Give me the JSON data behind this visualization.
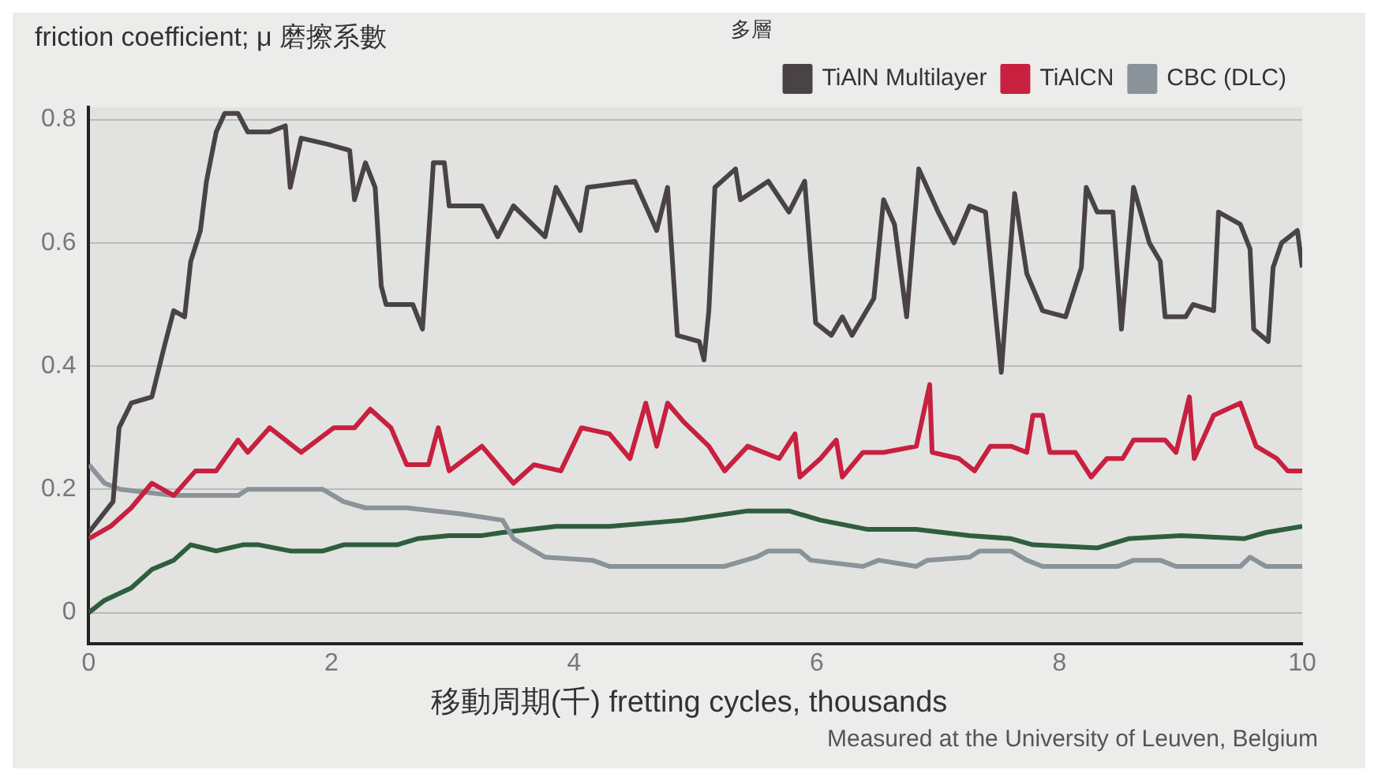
{
  "chart_data": {
    "type": "line",
    "ylabel": "friction coefficient; μ 磨擦系數",
    "xlabel": "移動周期(千) fretting cycles, thousands",
    "annotations": [
      "多層",
      "Measured at the University of Leuven, Belgium"
    ],
    "xlim": [
      0,
      10
    ],
    "xticks": [
      0,
      2,
      4,
      6,
      8,
      10
    ],
    "ylim": [
      -0.05,
      0.82
    ],
    "yticks": [
      0,
      0.2,
      0.4,
      0.6,
      0.8
    ],
    "grid": "y",
    "legend": "top right",
    "marker": "none",
    "line_style": "solid",
    "series": [
      {
        "name": "TiAlN Multilayer",
        "color": "#4a4346",
        "x": [
          0,
          0.2,
          0.25,
          0.35,
          0.52,
          0.62,
          0.7,
          0.79,
          0.84,
          0.92,
          0.97,
          1.05,
          1.12,
          1.23,
          1.31,
          1.49,
          1.62,
          1.66,
          1.75,
          1.97,
          2.15,
          2.19,
          2.28,
          2.36,
          2.41,
          2.45,
          2.67,
          2.75,
          2.84,
          2.93,
          2.97,
          3.24,
          3.37,
          3.5,
          3.76,
          3.85,
          4.05,
          4.11,
          4.5,
          4.68,
          4.77,
          4.85,
          5.03,
          5.07,
          5.11,
          5.16,
          5.33,
          5.37,
          5.6,
          5.77,
          5.9,
          5.99,
          6.12,
          6.21,
          6.29,
          6.47,
          6.55,
          6.64,
          6.74,
          6.84,
          7.0,
          7.13,
          7.26,
          7.39,
          7.52,
          7.63,
          7.73,
          7.86,
          8.05,
          8.18,
          8.22,
          8.31,
          8.44,
          8.51,
          8.61,
          8.74,
          8.83,
          8.87,
          9.04,
          9.1,
          9.27,
          9.31,
          9.49,
          9.57,
          9.6,
          9.72,
          9.76,
          9.83,
          9.96,
          10
        ],
        "values": [
          0.13,
          0.18,
          0.3,
          0.34,
          0.35,
          0.43,
          0.49,
          0.48,
          0.57,
          0.62,
          0.7,
          0.78,
          0.81,
          0.81,
          0.78,
          0.78,
          0.79,
          0.69,
          0.77,
          0.76,
          0.75,
          0.67,
          0.73,
          0.69,
          0.53,
          0.5,
          0.5,
          0.46,
          0.73,
          0.73,
          0.66,
          0.66,
          0.61,
          0.66,
          0.61,
          0.69,
          0.62,
          0.69,
          0.7,
          0.62,
          0.69,
          0.45,
          0.44,
          0.41,
          0.49,
          0.69,
          0.72,
          0.67,
          0.7,
          0.65,
          0.7,
          0.47,
          0.45,
          0.48,
          0.45,
          0.51,
          0.67,
          0.63,
          0.48,
          0.72,
          0.65,
          0.6,
          0.66,
          0.65,
          0.39,
          0.68,
          0.55,
          0.49,
          0.48,
          0.56,
          0.69,
          0.65,
          0.65,
          0.46,
          0.69,
          0.6,
          0.57,
          0.48,
          0.48,
          0.5,
          0.49,
          0.65,
          0.63,
          0.59,
          0.46,
          0.44,
          0.56,
          0.6,
          0.62,
          0.56
        ]
      },
      {
        "name": "TiAlCN",
        "color": "#c8203f",
        "x": [
          0,
          0.18,
          0.35,
          0.52,
          0.7,
          0.88,
          1.05,
          1.23,
          1.31,
          1.49,
          1.75,
          2.02,
          2.19,
          2.32,
          2.49,
          2.62,
          2.8,
          2.88,
          2.97,
          3.24,
          3.5,
          3.67,
          3.89,
          4.06,
          4.29,
          4.46,
          4.59,
          4.68,
          4.77,
          4.9,
          5.11,
          5.24,
          5.43,
          5.69,
          5.82,
          5.86,
          6.03,
          6.16,
          6.21,
          6.38,
          6.55,
          6.82,
          6.93,
          6.95,
          7.17,
          7.3,
          7.43,
          7.6,
          7.73,
          7.78,
          7.86,
          7.92,
          8.13,
          8.26,
          8.39,
          8.52,
          8.61,
          8.87,
          8.96,
          9.07,
          9.11,
          9.27,
          9.49,
          9.62,
          9.79,
          9.88,
          10
        ],
        "values": [
          0.12,
          0.14,
          0.17,
          0.21,
          0.19,
          0.23,
          0.23,
          0.28,
          0.26,
          0.3,
          0.26,
          0.3,
          0.3,
          0.33,
          0.3,
          0.24,
          0.24,
          0.3,
          0.23,
          0.27,
          0.21,
          0.24,
          0.23,
          0.3,
          0.29,
          0.25,
          0.34,
          0.27,
          0.34,
          0.31,
          0.27,
          0.23,
          0.27,
          0.25,
          0.29,
          0.22,
          0.25,
          0.28,
          0.22,
          0.26,
          0.26,
          0.27,
          0.37,
          0.26,
          0.25,
          0.23,
          0.27,
          0.27,
          0.26,
          0.32,
          0.32,
          0.26,
          0.26,
          0.22,
          0.25,
          0.25,
          0.28,
          0.28,
          0.26,
          0.35,
          0.25,
          0.32,
          0.34,
          0.27,
          0.25,
          0.23,
          0.23
        ]
      },
      {
        "name": "CBC (DLC)",
        "color": "#8a9399",
        "x": [
          0,
          0.13,
          0.26,
          0.7,
          1.23,
          1.31,
          1.57,
          1.93,
          2.1,
          2.28,
          2.54,
          2.62,
          3.07,
          3.41,
          3.5,
          3.76,
          4.15,
          4.29,
          4.9,
          5.24,
          5.5,
          5.6,
          5.86,
          5.95,
          6.38,
          6.51,
          6.82,
          6.91,
          7.26,
          7.34,
          7.6,
          7.73,
          7.86,
          8.48,
          8.61,
          8.83,
          8.96,
          9.49,
          9.57,
          9.7,
          10
        ],
        "values": [
          0.24,
          0.21,
          0.2,
          0.19,
          0.19,
          0.2,
          0.2,
          0.2,
          0.18,
          0.17,
          0.17,
          0.17,
          0.16,
          0.15,
          0.12,
          0.09,
          0.085,
          0.075,
          0.075,
          0.075,
          0.09,
          0.1,
          0.1,
          0.085,
          0.075,
          0.085,
          0.075,
          0.085,
          0.09,
          0.1,
          0.1,
          0.085,
          0.075,
          0.075,
          0.085,
          0.085,
          0.075,
          0.075,
          0.09,
          0.075,
          0.075
        ]
      },
      {
        "color": "#2f5e3e",
        "x": [
          0,
          0.13,
          0.35,
          0.52,
          0.7,
          0.84,
          1.05,
          1.27,
          1.4,
          1.66,
          1.93,
          2.1,
          2.54,
          2.71,
          2.97,
          3.24,
          3.41,
          3.85,
          4.29,
          4.9,
          5.43,
          5.77,
          6.03,
          6.42,
          6.82,
          7.26,
          7.6,
          7.78,
          8.31,
          8.57,
          9.0,
          9.52,
          9.7,
          10
        ],
        "values": [
          0,
          0.02,
          0.04,
          0.07,
          0.085,
          0.11,
          0.1,
          0.11,
          0.11,
          0.1,
          0.1,
          0.11,
          0.11,
          0.12,
          0.125,
          0.125,
          0.13,
          0.14,
          0.14,
          0.15,
          0.165,
          0.165,
          0.15,
          0.135,
          0.135,
          0.125,
          0.12,
          0.11,
          0.105,
          0.12,
          0.125,
          0.12,
          0.13,
          0.14
        ]
      }
    ]
  }
}
